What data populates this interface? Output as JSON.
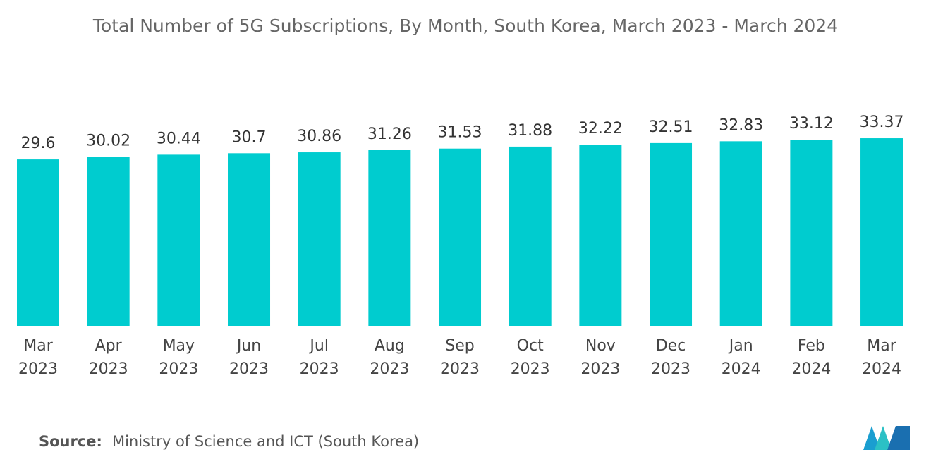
{
  "chart_data": {
    "type": "bar",
    "title": "Total Number of 5G Subscriptions, By Month, South Korea, March 2023 - March 2024",
    "categories": [
      "Mar 2023",
      "Apr 2023",
      "May 2023",
      "Jun 2023",
      "Jul 2023",
      "Aug 2023",
      "Sep 2023",
      "Oct 2023",
      "Nov 2023",
      "Dec 2023",
      "Jan 2024",
      "Feb 2024",
      "Mar 2024"
    ],
    "values": [
      29.6,
      30.02,
      30.44,
      30.7,
      30.86,
      31.26,
      31.53,
      31.88,
      32.22,
      32.51,
      32.83,
      33.12,
      33.37
    ],
    "color": "#00cccf",
    "source_label": "Source:",
    "source": "Ministry of Science and ICT (South Korea)"
  }
}
